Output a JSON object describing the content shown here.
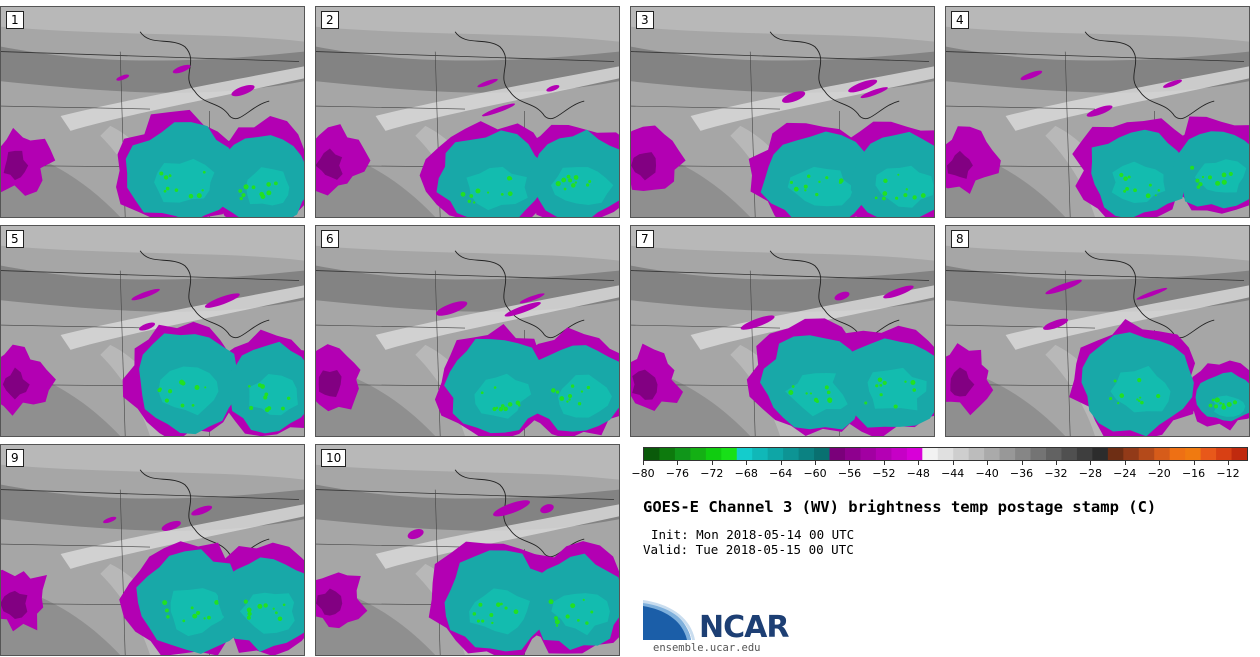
{
  "title": "GOES-E Channel 3 (WV) brightness temp postage stamp (C)",
  "init": "Init: Mon 2018-05-14 00 UTC",
  "valid": "Valid: Tue 2018-05-15 00 UTC",
  "logo_text": "NCAR",
  "site": "ensemble.ucar.edu",
  "panels": [
    {
      "label": "1"
    },
    {
      "label": "2"
    },
    {
      "label": "3"
    },
    {
      "label": "4"
    },
    {
      "label": "5"
    },
    {
      "label": "6"
    },
    {
      "label": "7"
    },
    {
      "label": "8"
    },
    {
      "label": "9"
    },
    {
      "label": "10"
    }
  ],
  "colorbar": {
    "min": -80,
    "max": -10,
    "tick_labels": [
      "−80",
      "−76",
      "−72",
      "−68",
      "−64",
      "−60",
      "−56",
      "−52",
      "−48",
      "−44",
      "−40",
      "−36",
      "−32",
      "−28",
      "−24",
      "−20",
      "−16",
      "−12"
    ],
    "colors": [
      "#0a5a0a",
      "#0d7a0d",
      "#10961a",
      "#14b014",
      "#10cc10",
      "#18e018",
      "#14cccc",
      "#10b8b8",
      "#0ea6a6",
      "#0d9494",
      "#0b8282",
      "#097070",
      "#7a007a",
      "#8e008e",
      "#a200a2",
      "#b400b4",
      "#c600c6",
      "#d800d8",
      "#f2f2f2",
      "#e0e0e0",
      "#cecece",
      "#bcbcbc",
      "#aaaaaa",
      "#989898",
      "#868686",
      "#747474",
      "#626262",
      "#505050",
      "#3e3e3e",
      "#2c2c2c",
      "#6e2e14",
      "#923a18",
      "#b44a1a",
      "#d65c1a",
      "#ee7014",
      "#f07a10",
      "#e8581a",
      "#d84014",
      "#c02a0e"
    ]
  }
}
